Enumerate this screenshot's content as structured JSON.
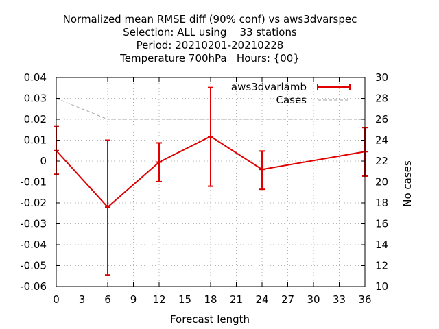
{
  "chart_data": {
    "type": "line",
    "title_lines": [
      "Normalized mean RMSE diff (90% conf) vs aws3dvarspec",
      "Selection: ALL using    33 stations",
      "Period: 20210201-20210228",
      "Temperature 700hPa   Hours: {00}"
    ],
    "xlabel": "Forecast length",
    "ylabel": "",
    "y2label": "No cases",
    "xlim": [
      0,
      36
    ],
    "ylim": [
      -0.06,
      0.04
    ],
    "y2lim": [
      10,
      30
    ],
    "xticks": [
      0,
      3,
      6,
      9,
      12,
      15,
      18,
      21,
      24,
      27,
      30,
      33,
      36
    ],
    "yticks": [
      -0.06,
      -0.05,
      -0.04,
      -0.03,
      -0.02,
      -0.01,
      0,
      0.01,
      0.02,
      0.03,
      0.04
    ],
    "y2ticks": [
      10,
      12,
      14,
      16,
      18,
      20,
      22,
      24,
      26,
      28,
      30
    ],
    "grid": true,
    "legend_position": "top-right",
    "series": [
      {
        "name": "aws3dvarlamb",
        "color": "#e00000",
        "axis": "y",
        "x": [
          0,
          6,
          12,
          18,
          24,
          36
        ],
        "y": [
          0.005,
          -0.022,
          -0.0005,
          0.0118,
          -0.004,
          0.0045
        ],
        "err_low": [
          -0.0063,
          -0.0545,
          -0.0098,
          -0.012,
          -0.0135,
          -0.0072
        ],
        "err_high": [
          0.0165,
          0.01,
          0.0087,
          0.0352,
          0.0048,
          0.016
        ]
      },
      {
        "name": "Cases",
        "color": "#a0a0a0",
        "axis": "y2",
        "x": [
          0,
          6,
          12,
          18,
          24,
          36
        ],
        "y": [
          28,
          26,
          26,
          26,
          26,
          26
        ]
      }
    ]
  }
}
